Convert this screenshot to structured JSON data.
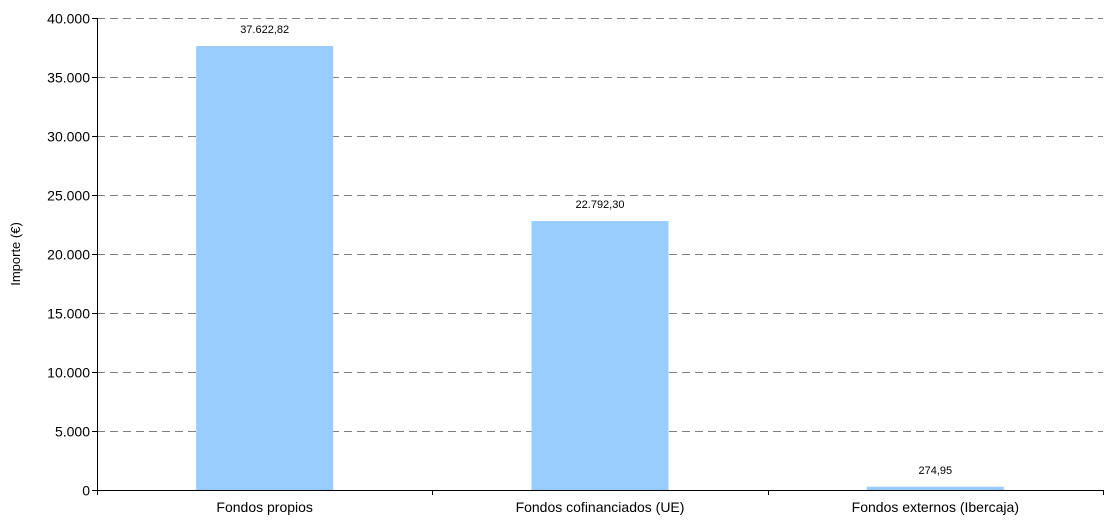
{
  "chart_data": {
    "type": "bar",
    "title": "",
    "xlabel": "",
    "ylabel": "Importe (€)",
    "categories": [
      "Fondos propios",
      "Fondos cofinanciados (UE)",
      "Fondos externos (Ibercaja)"
    ],
    "values": [
      37622.82,
      22792.3,
      274.95
    ],
    "value_labels": [
      "37.622,82",
      "22.792,30",
      "274,95"
    ],
    "ylim": [
      0,
      40000
    ],
    "yticks": [
      0,
      5000,
      10000,
      15000,
      20000,
      25000,
      30000,
      35000,
      40000
    ],
    "ytick_labels": [
      "0",
      "5.000",
      "10.000",
      "15.000",
      "20.000",
      "25.000",
      "30.000",
      "35.000",
      "40.000"
    ],
    "grid": "horizontal-dashed",
    "legend": "none",
    "bar_color": "#99CCFF",
    "grid_color": "#808080",
    "axis_color": "#000000"
  }
}
